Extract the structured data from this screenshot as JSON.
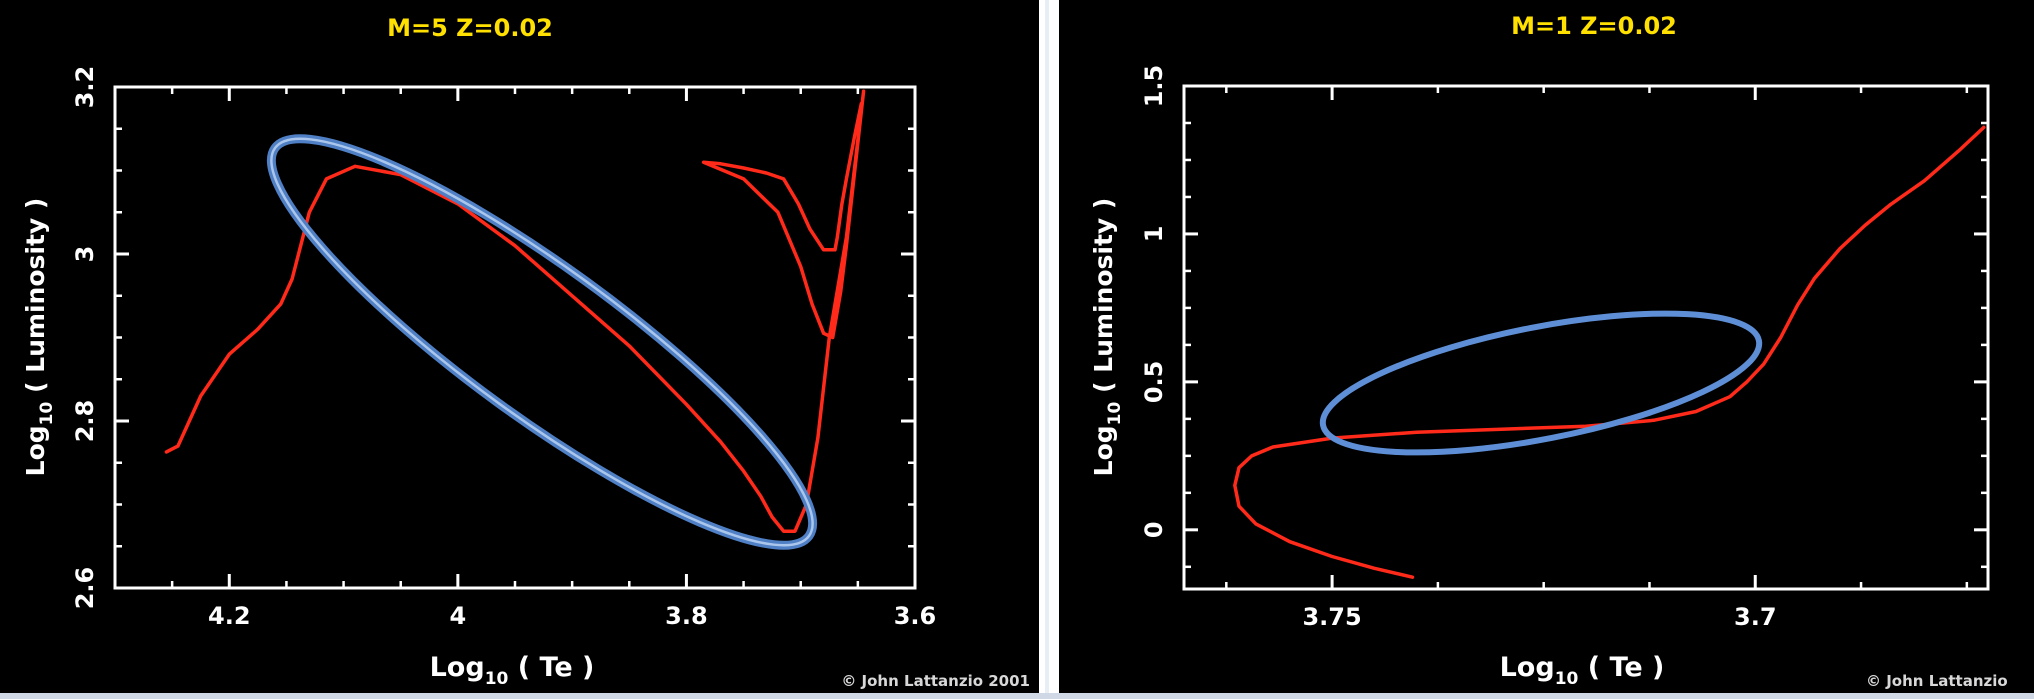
{
  "panels": [
    {
      "title": "M=5  Z=0.02",
      "xlabel": "Log10 ( Te )",
      "ylabel": "Log10 ( Luminosity )",
      "credit": "© John Lattanzio 2001"
    },
    {
      "title": "M=1  Z=0.02",
      "xlabel": "Log10 ( Te )",
      "ylabel": "Log10 ( Luminosity )",
      "credit": "© John Lattanzio"
    }
  ],
  "chart_data": [
    {
      "type": "line",
      "title": "M=5  Z=0.02",
      "xlabel": "Log10 ( Te )",
      "ylabel": "Log10 ( Luminosity )",
      "xlim": [
        4.3,
        3.6
      ],
      "ylim": [
        2.6,
        3.2
      ],
      "x_reversed": true,
      "xticks": [
        4.2,
        4,
        3.8,
        3.6
      ],
      "xtick_labels": [
        "4.2",
        "4",
        "3.8",
        "3.6"
      ],
      "yticks": [
        2.6,
        2.8,
        3,
        3.2
      ],
      "ytick_labels": [
        "2.6",
        "2.8",
        "3",
        "3.2"
      ],
      "line_color": "#ff2a1a",
      "series": [
        {
          "x": [
            4.255,
            4.245,
            4.225,
            4.2,
            4.175,
            4.155,
            4.145,
            4.13,
            4.115,
            4.09,
            4.05,
            4.0,
            3.95,
            3.9,
            3.85,
            3.8,
            3.77,
            3.75,
            3.735,
            3.725,
            3.715,
            3.705,
            3.695,
            3.685,
            3.675,
            3.66,
            3.645,
            3.66,
            3.665,
            3.672,
            3.68,
            3.69,
            3.7,
            3.72,
            3.75,
            3.785,
            3.77,
            3.75,
            3.73,
            3.715,
            3.702,
            3.692,
            3.68,
            3.67,
            3.668,
            3.664,
            3.66,
            3.653,
            3.647
          ],
          "y": [
            2.763,
            2.77,
            2.83,
            2.88,
            2.91,
            2.94,
            2.97,
            3.05,
            3.09,
            3.105,
            3.095,
            3.06,
            3.01,
            2.95,
            2.89,
            2.82,
            2.775,
            2.74,
            2.71,
            2.685,
            2.668,
            2.668,
            2.7,
            2.78,
            2.9,
            3.02,
            3.195,
            3.01,
            2.955,
            2.9,
            2.905,
            2.94,
            2.985,
            3.05,
            3.09,
            3.11,
            3.108,
            3.103,
            3.097,
            3.09,
            3.06,
            3.03,
            3.005,
            3.005,
            3.02,
            3.06,
            3.09,
            3.14,
            3.18
          ]
        }
      ],
      "highlight": {
        "shape": "ellipse",
        "color": "#6f97d0"
      }
    },
    {
      "type": "line",
      "title": "M=1  Z=0.02",
      "xlabel": "Log10 ( Te )",
      "ylabel": "Log10 ( Luminosity )",
      "xlim": [
        3.7675,
        3.6725
      ],
      "ylim": [
        -0.2,
        1.5
      ],
      "x_reversed": true,
      "xticks": [
        3.75,
        3.7
      ],
      "xtick_labels": [
        "3.75",
        "3.7"
      ],
      "yticks": [
        0,
        0.5,
        1,
        1.5
      ],
      "ytick_labels": [
        "0",
        "0.5",
        "1",
        "1.5"
      ],
      "line_color": "#ff2a1a",
      "series": [
        {
          "x": [
            3.7405,
            3.745,
            3.75,
            3.755,
            3.759,
            3.761,
            3.7615,
            3.761,
            3.7595,
            3.757,
            3.75,
            3.74,
            3.73,
            3.72,
            3.712,
            3.707,
            3.703,
            3.701,
            3.699,
            3.697,
            3.695,
            3.693,
            3.69,
            3.687,
            3.684,
            3.68,
            3.676,
            3.673
          ],
          "y": [
            -0.16,
            -0.13,
            -0.09,
            -0.04,
            0.02,
            0.08,
            0.15,
            0.21,
            0.25,
            0.28,
            0.31,
            0.33,
            0.34,
            0.35,
            0.37,
            0.4,
            0.45,
            0.5,
            0.56,
            0.65,
            0.76,
            0.85,
            0.95,
            1.03,
            1.1,
            1.18,
            1.28,
            1.36
          ]
        }
      ],
      "highlight": {
        "shape": "ellipse",
        "color": "#6f97d0"
      }
    }
  ]
}
